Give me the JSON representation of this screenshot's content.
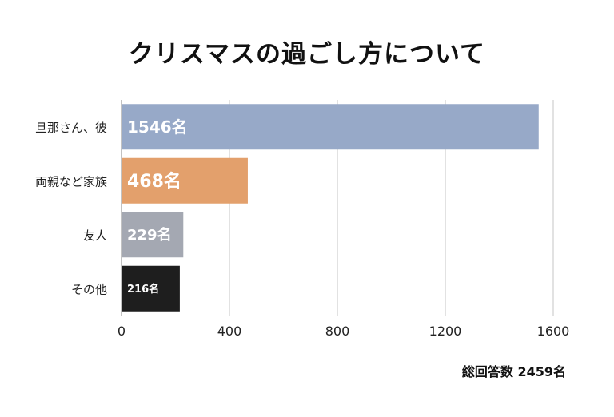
{
  "chart_data": {
    "type": "bar",
    "orientation": "horizontal",
    "title": "クリスマスの過ごし方について",
    "categories": [
      "旦那さん、彼",
      "両親など家族",
      "友人",
      "その他"
    ],
    "values": [
      1546,
      468,
      229,
      216
    ],
    "data_labels": [
      "1546名",
      "468名",
      "229名",
      "216名"
    ],
    "bar_colors": [
      "#97a9c8",
      "#e3a06c",
      "#a4a8b2",
      "#1e1e1e"
    ],
    "xlim": [
      0,
      1600
    ],
    "x_ticks": [
      0,
      400,
      800,
      1200,
      1600
    ],
    "grid": true,
    "xlabel": "",
    "ylabel": "",
    "footnote": "総回答数 2459名"
  }
}
